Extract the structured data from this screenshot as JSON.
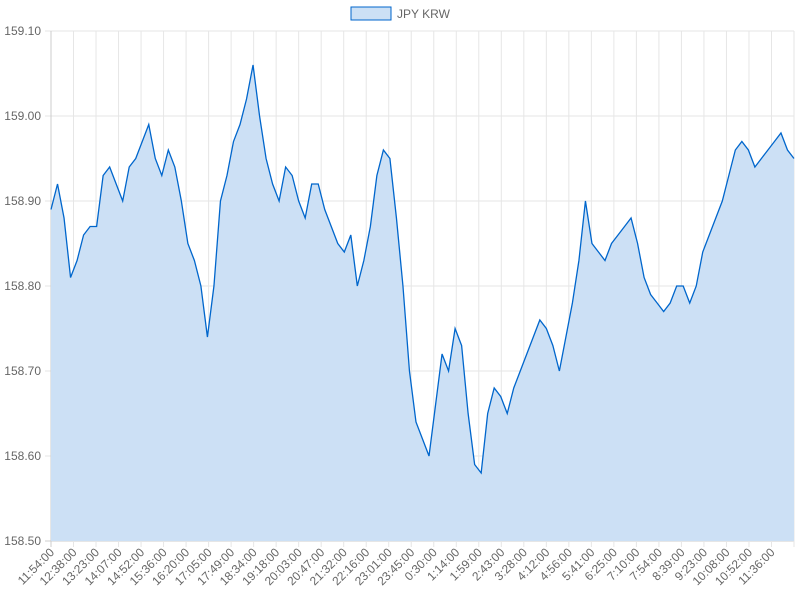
{
  "chart_data": {
    "type": "area",
    "legend": {
      "position": "top-center"
    },
    "grid": true,
    "colors": {
      "line": "#0066cc",
      "fill": "#cce0f5",
      "grid": "#e6e6e6",
      "axis": "#cccccc",
      "text": "#666666"
    },
    "ylim": [
      158.5,
      159.1
    ],
    "y_ticks": [
      "159.10",
      "159.00",
      "158.90",
      "158.80",
      "158.70",
      "158.60",
      "158.50"
    ],
    "x_tick_labels": [
      "11:54:00",
      "12:38:00",
      "13:23:00",
      "14:07:00",
      "14:52:00",
      "15:36:00",
      "16:20:00",
      "17:05:00",
      "17:49:00",
      "18:34:00",
      "19:18:00",
      "20:03:00",
      "20:47:00",
      "21:32:00",
      "22:16:00",
      "23:01:00",
      "23:45:00",
      "0:30:00",
      "1:14:00",
      "1:59:00",
      "2:43:00",
      "3:28:00",
      "4:12:00",
      "4:56:00",
      "5:41:00",
      "6:25:00",
      "7:10:00",
      "7:54:00",
      "8:39:00",
      "9:23:00",
      "10:08:00",
      "10:52:00",
      "11:36:00"
    ],
    "series": [
      {
        "name": "JPY KRW",
        "values": [
          158.89,
          158.92,
          158.88,
          158.81,
          158.83,
          158.86,
          158.87,
          158.87,
          158.93,
          158.94,
          158.92,
          158.9,
          158.94,
          158.95,
          158.97,
          158.99,
          158.95,
          158.93,
          158.96,
          158.94,
          158.9,
          158.85,
          158.83,
          158.8,
          158.74,
          158.8,
          158.9,
          158.93,
          158.97,
          158.99,
          159.02,
          159.06,
          159.0,
          158.95,
          158.92,
          158.9,
          158.94,
          158.93,
          158.9,
          158.88,
          158.92,
          158.92,
          158.89,
          158.87,
          158.85,
          158.84,
          158.86,
          158.8,
          158.83,
          158.87,
          158.93,
          158.96,
          158.95,
          158.88,
          158.8,
          158.7,
          158.64,
          158.62,
          158.6,
          158.66,
          158.72,
          158.7,
          158.75,
          158.73,
          158.65,
          158.59,
          158.58,
          158.65,
          158.68,
          158.67,
          158.65,
          158.68,
          158.7,
          158.72,
          158.74,
          158.76,
          158.75,
          158.73,
          158.7,
          158.74,
          158.78,
          158.83,
          158.9,
          158.85,
          158.84,
          158.83,
          158.85,
          158.86,
          158.87,
          158.88,
          158.85,
          158.81,
          158.79,
          158.78,
          158.77,
          158.78,
          158.8,
          158.8,
          158.78,
          158.8,
          158.84,
          158.86,
          158.88,
          158.9,
          158.93,
          158.96,
          158.97,
          158.96,
          158.94,
          158.95,
          158.96,
          158.97,
          158.98,
          158.96,
          158.95
        ]
      }
    ]
  }
}
